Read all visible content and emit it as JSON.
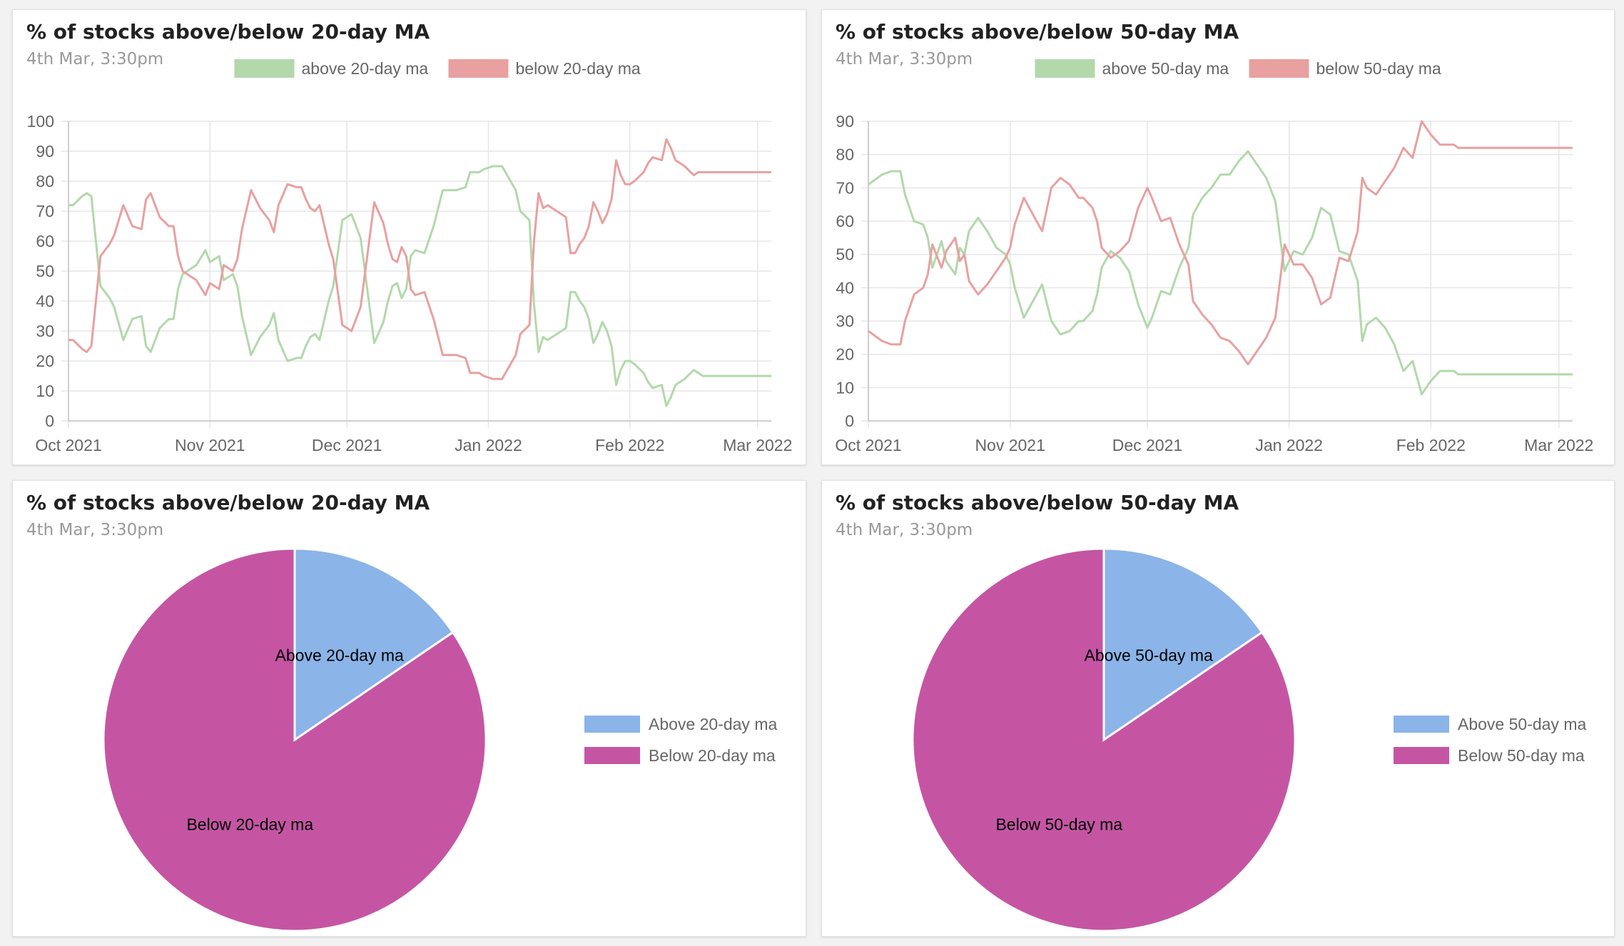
{
  "charts": [
    {
      "id": "line20",
      "title": "% of stocks above/below 20-day MA",
      "subtitle": "4th Mar, 3:30pm"
    },
    {
      "id": "line50",
      "title": "% of stocks above/below 50-day MA",
      "subtitle": "4th Mar, 3:30pm"
    },
    {
      "id": "pie20",
      "title": "% of stocks above/below 20-day MA",
      "subtitle": "4th Mar, 3:30pm"
    },
    {
      "id": "pie50",
      "title": "% of stocks above/below 50-day MA",
      "subtitle": "4th Mar, 3:30pm"
    }
  ],
  "chart_data": [
    {
      "type": "line",
      "title": "% of stocks above/below 20-day MA",
      "subtitle": "4th Mar, 3:30pm",
      "x_start": "2021-10-01",
      "x_ticks": [
        "Oct 2021",
        "Nov 2021",
        "Dec 2021",
        "Jan 2022",
        "Feb 2022",
        "Mar 2022"
      ],
      "x_tick_days": [
        0,
        31,
        61,
        92,
        123,
        151
      ],
      "x_range_days": [
        0,
        154
      ],
      "ylim": [
        0,
        100
      ],
      "y_ticks": [
        0,
        10,
        20,
        30,
        40,
        50,
        60,
        70,
        80,
        90,
        100
      ],
      "grid": true,
      "legend_position": "top",
      "series": [
        {
          "name": "above 20-day ma",
          "color": "#b2d8ab",
          "x": [
            0,
            1,
            3,
            4,
            5,
            7,
            9,
            10,
            12,
            14,
            16,
            17,
            18,
            20,
            22,
            23,
            24,
            25,
            28,
            30,
            31,
            32,
            33,
            34,
            36,
            37,
            38,
            40,
            42,
            44,
            45,
            46,
            48,
            50,
            51,
            52,
            53,
            54,
            55,
            57,
            58,
            60,
            61,
            62,
            64,
            67,
            69,
            70,
            71,
            72,
            73,
            74,
            75,
            76,
            78,
            80,
            82,
            83,
            85,
            87,
            88,
            90,
            91,
            93,
            95,
            98,
            99,
            101,
            102,
            103,
            104,
            105,
            106,
            107,
            108,
            109,
            110,
            111,
            112,
            113,
            114,
            115,
            116,
            117,
            118,
            119,
            120,
            121,
            122,
            123,
            124,
            126,
            127,
            128,
            130,
            131,
            132,
            133,
            134,
            135,
            137,
            138,
            139,
            140,
            141,
            142,
            143,
            144,
            145,
            146,
            147,
            148,
            149,
            150,
            151,
            152,
            153,
            154
          ],
          "y": [
            72,
            72,
            75,
            76,
            75,
            45,
            41,
            38,
            27,
            34,
            35,
            25,
            23,
            31,
            34,
            34,
            44,
            49,
            52,
            57,
            53,
            54,
            55,
            47,
            49,
            45,
            35,
            22,
            28,
            32,
            36,
            27,
            20,
            21,
            21,
            25,
            28,
            29,
            27,
            40,
            45,
            67,
            68,
            69,
            61,
            26,
            33,
            40,
            45,
            46,
            41,
            44,
            55,
            57,
            56,
            65,
            77,
            77,
            77,
            78,
            83,
            83,
            84,
            85,
            85,
            77,
            70,
            67,
            39,
            23,
            28,
            27,
            28,
            29,
            30,
            31,
            43,
            43,
            40,
            38,
            34,
            26,
            29,
            33,
            30,
            25,
            12,
            17,
            20,
            20,
            19,
            16,
            13,
            11,
            12,
            5,
            8,
            12,
            13,
            14,
            17,
            16,
            15,
            15,
            15,
            15,
            15,
            15,
            15,
            15,
            15,
            15,
            15,
            15,
            15,
            15,
            15,
            15
          ]
        },
        {
          "name": "below 20-day ma",
          "color": "#e8a0a0",
          "x": [
            0,
            1,
            3,
            4,
            5,
            7,
            9,
            10,
            12,
            14,
            16,
            17,
            18,
            20,
            22,
            23,
            24,
            25,
            28,
            30,
            31,
            32,
            33,
            34,
            36,
            37,
            38,
            40,
            42,
            44,
            45,
            46,
            48,
            50,
            51,
            52,
            53,
            54,
            55,
            57,
            58,
            60,
            61,
            62,
            64,
            67,
            69,
            70,
            71,
            72,
            73,
            74,
            75,
            76,
            78,
            80,
            82,
            83,
            85,
            87,
            88,
            90,
            91,
            93,
            95,
            98,
            99,
            101,
            102,
            103,
            104,
            105,
            106,
            107,
            108,
            109,
            110,
            111,
            112,
            113,
            114,
            115,
            116,
            117,
            118,
            119,
            120,
            121,
            122,
            123,
            124,
            126,
            127,
            128,
            130,
            131,
            132,
            133,
            134,
            135,
            137,
            138,
            139,
            140,
            141,
            142,
            143,
            144,
            145,
            146,
            147,
            148,
            149,
            150,
            151,
            152,
            153,
            154
          ],
          "y": [
            27,
            27,
            24,
            23,
            25,
            55,
            59,
            62,
            72,
            65,
            64,
            74,
            76,
            68,
            65,
            65,
            55,
            50,
            47,
            42,
            46,
            45,
            44,
            52,
            50,
            54,
            64,
            77,
            71,
            67,
            63,
            72,
            79,
            78,
            78,
            74,
            71,
            70,
            72,
            59,
            54,
            32,
            31,
            30,
            38,
            73,
            66,
            59,
            54,
            53,
            58,
            55,
            44,
            42,
            43,
            34,
            22,
            22,
            22,
            21,
            16,
            16,
            15,
            14,
            14,
            22,
            29,
            32,
            60,
            76,
            71,
            72,
            71,
            70,
            69,
            68,
            56,
            56,
            59,
            61,
            65,
            73,
            70,
            66,
            69,
            74,
            87,
            82,
            79,
            79,
            80,
            83,
            86,
            88,
            87,
            94,
            91,
            87,
            86,
            85,
            82,
            83,
            83,
            83,
            83,
            83,
            83,
            83,
            83,
            83,
            83,
            83,
            83,
            83,
            83,
            83,
            83,
            83
          ]
        }
      ]
    },
    {
      "type": "line",
      "title": "% of stocks above/below 50-day MA",
      "subtitle": "4th Mar, 3:30pm",
      "x_start": "2021-10-01",
      "x_ticks": [
        "Oct 2021",
        "Nov 2021",
        "Dec 2021",
        "Jan 2022",
        "Feb 2022",
        "Mar 2022"
      ],
      "x_tick_days": [
        0,
        31,
        61,
        92,
        123,
        151
      ],
      "x_range_days": [
        0,
        154
      ],
      "ylim": [
        0,
        90
      ],
      "y_ticks": [
        0,
        10,
        20,
        30,
        40,
        50,
        60,
        70,
        80,
        90
      ],
      "grid": true,
      "legend_position": "top",
      "series": [
        {
          "name": "above 50-day ma",
          "color": "#b2d8ab",
          "x": [
            0,
            1,
            3,
            5,
            7,
            8,
            10,
            12,
            13,
            14,
            16,
            17,
            19,
            20,
            21,
            22,
            24,
            26,
            28,
            30,
            31,
            32,
            34,
            36,
            38,
            40,
            42,
            44,
            46,
            47,
            49,
            50,
            51,
            53,
            54,
            55,
            57,
            59,
            61,
            62,
            64,
            66,
            68,
            70,
            71,
            73,
            75,
            77,
            79,
            81,
            83,
            85,
            87,
            89,
            91,
            93,
            95,
            97,
            99,
            101,
            103,
            105,
            107,
            108,
            109,
            111,
            113,
            115,
            117,
            119,
            121,
            123,
            125,
            127,
            128,
            129,
            131,
            133,
            135,
            137,
            139,
            141,
            142,
            143,
            145,
            146,
            147,
            148,
            149,
            150,
            151,
            152,
            153,
            154
          ],
          "y": [
            71,
            72,
            74,
            75,
            75,
            68,
            60,
            59,
            55,
            46,
            54,
            48,
            44,
            52,
            50,
            57,
            61,
            57,
            52,
            50,
            47,
            40,
            31,
            36,
            41,
            30,
            26,
            27,
            30,
            30,
            33,
            38,
            46,
            51,
            50,
            49,
            45,
            35,
            28,
            31,
            39,
            38,
            46,
            52,
            62,
            67,
            70,
            74,
            74,
            78,
            81,
            77,
            73,
            66,
            45,
            51,
            50,
            55,
            64,
            62,
            51,
            50,
            42,
            24,
            29,
            31,
            28,
            23,
            15,
            18,
            8,
            12,
            15,
            15,
            15,
            14,
            14,
            14,
            14,
            14,
            14,
            14,
            14,
            14,
            14,
            14,
            14,
            14,
            14,
            14,
            14,
            14,
            14,
            14
          ]
        },
        {
          "name": "below 50-day ma",
          "color": "#e8a0a0",
          "x": [
            0,
            1,
            3,
            5,
            7,
            8,
            10,
            12,
            13,
            14,
            16,
            17,
            19,
            20,
            21,
            22,
            24,
            26,
            28,
            30,
            31,
            32,
            34,
            36,
            38,
            40,
            42,
            44,
            46,
            47,
            49,
            50,
            51,
            53,
            54,
            55,
            57,
            59,
            61,
            62,
            64,
            66,
            68,
            70,
            71,
            73,
            75,
            77,
            79,
            81,
            83,
            85,
            87,
            89,
            91,
            93,
            95,
            97,
            99,
            101,
            103,
            105,
            107,
            108,
            109,
            111,
            113,
            115,
            117,
            119,
            121,
            123,
            125,
            127,
            128,
            129,
            131,
            133,
            135,
            137,
            139,
            141,
            142,
            143,
            145,
            146,
            147,
            148,
            149,
            150,
            151,
            152,
            153,
            154
          ],
          "y": [
            27,
            26,
            24,
            23,
            23,
            30,
            38,
            40,
            44,
            53,
            46,
            51,
            55,
            48,
            50,
            42,
            38,
            41,
            45,
            49,
            52,
            59,
            67,
            62,
            57,
            70,
            73,
            71,
            67,
            67,
            64,
            60,
            52,
            49,
            50,
            51,
            54,
            64,
            70,
            67,
            60,
            61,
            53,
            47,
            36,
            32,
            29,
            25,
            24,
            21,
            17,
            21,
            25,
            31,
            53,
            47,
            47,
            43,
            35,
            37,
            49,
            48,
            57,
            73,
            70,
            68,
            72,
            76,
            82,
            79,
            90,
            86,
            83,
            83,
            83,
            82,
            82,
            82,
            82,
            82,
            82,
            82,
            82,
            82,
            82,
            82,
            82,
            82,
            82,
            82,
            82,
            82,
            82,
            82
          ]
        }
      ]
    },
    {
      "type": "pie",
      "title": "% of stocks above/below 20-day MA",
      "subtitle": "4th Mar, 3:30pm",
      "legend_position": "right",
      "slices": [
        {
          "name": "Above 20-day ma",
          "label": "Above 20-day ma",
          "value": 15.5,
          "color": "#8bb4e8"
        },
        {
          "name": "Below 20-day ma",
          "label": "Below 20-day ma",
          "value": 84.5,
          "color": "#c555a3"
        }
      ]
    },
    {
      "type": "pie",
      "title": "% of stocks above/below 50-day MA",
      "subtitle": "4th Mar, 3:30pm",
      "legend_position": "right",
      "slices": [
        {
          "name": "Above 50-day ma",
          "label": "Above 50-day ma",
          "value": 15.5,
          "color": "#8bb4e8"
        },
        {
          "name": "Below 50-day ma",
          "label": "Below 50-day ma",
          "value": 84.5,
          "color": "#c555a3"
        }
      ]
    }
  ]
}
